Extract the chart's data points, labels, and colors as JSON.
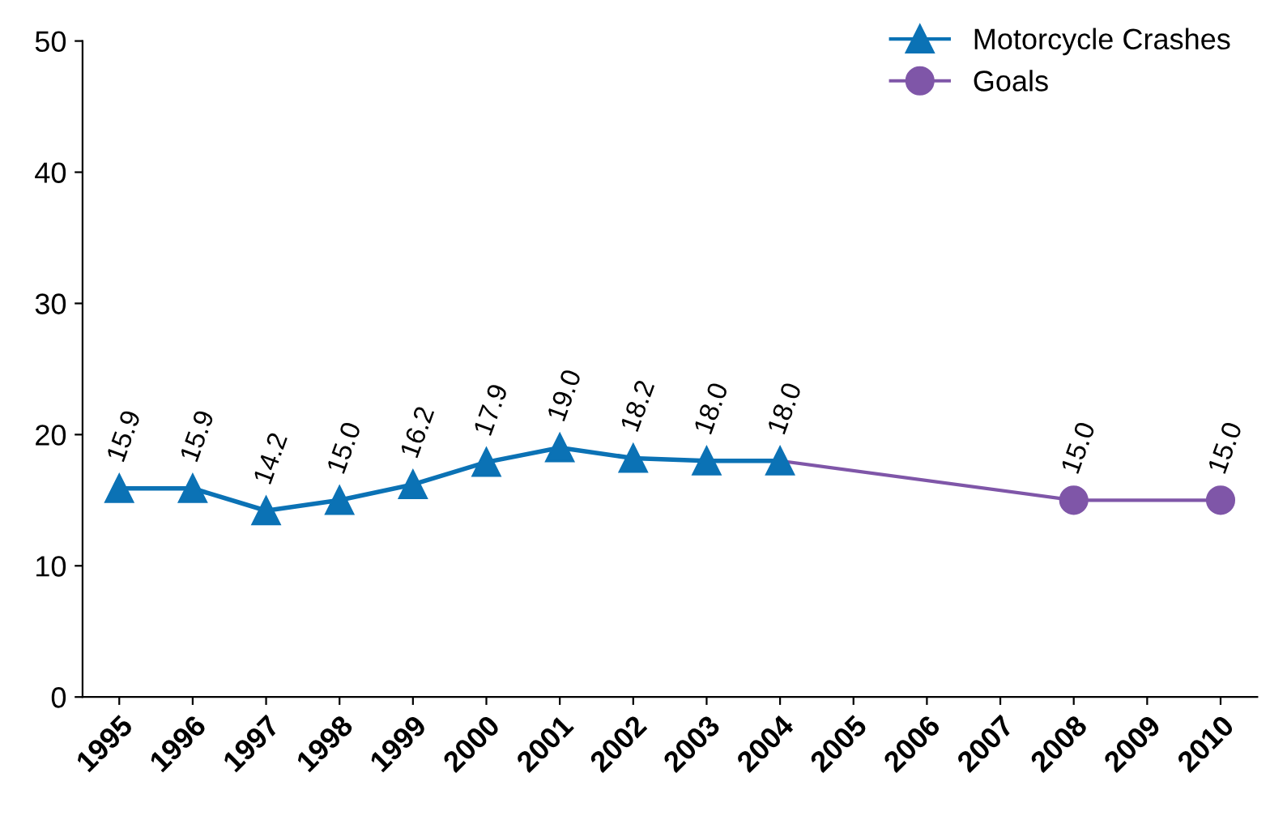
{
  "chart_data": {
    "type": "line",
    "categories": [
      "1995",
      "1996",
      "1997",
      "1998",
      "1999",
      "2000",
      "2001",
      "2002",
      "2003",
      "2004",
      "2005",
      "2006",
      "2007",
      "2008",
      "2009",
      "2010"
    ],
    "series": [
      {
        "name": "Goals",
        "color": "#7f56a8",
        "marker": "circle",
        "values": [
          null,
          null,
          null,
          null,
          null,
          null,
          null,
          null,
          null,
          18.0,
          null,
          null,
          null,
          15.0,
          null,
          15.0
        ],
        "value_labels": [
          null,
          null,
          null,
          null,
          null,
          null,
          null,
          null,
          null,
          null,
          null,
          null,
          null,
          "15.0",
          null,
          "15.0"
        ]
      },
      {
        "name": "Motorcycle Crashes",
        "color": "#0b72b5",
        "marker": "triangle",
        "values": [
          15.9,
          15.9,
          14.2,
          15.0,
          16.2,
          17.9,
          19.0,
          18.2,
          18.0,
          18.0,
          null,
          null,
          null,
          null,
          null,
          null
        ],
        "value_labels": [
          "15.9",
          "15.9",
          "14.2",
          "15.0",
          "16.2",
          "17.9",
          "19.0",
          "18.2",
          "18.0",
          "18.0",
          null,
          null,
          null,
          null,
          null,
          null
        ]
      }
    ],
    "ylim": [
      0,
      50
    ],
    "yticks": [
      0,
      10,
      20,
      30,
      40,
      50
    ],
    "grid": false,
    "legend": "top right"
  }
}
